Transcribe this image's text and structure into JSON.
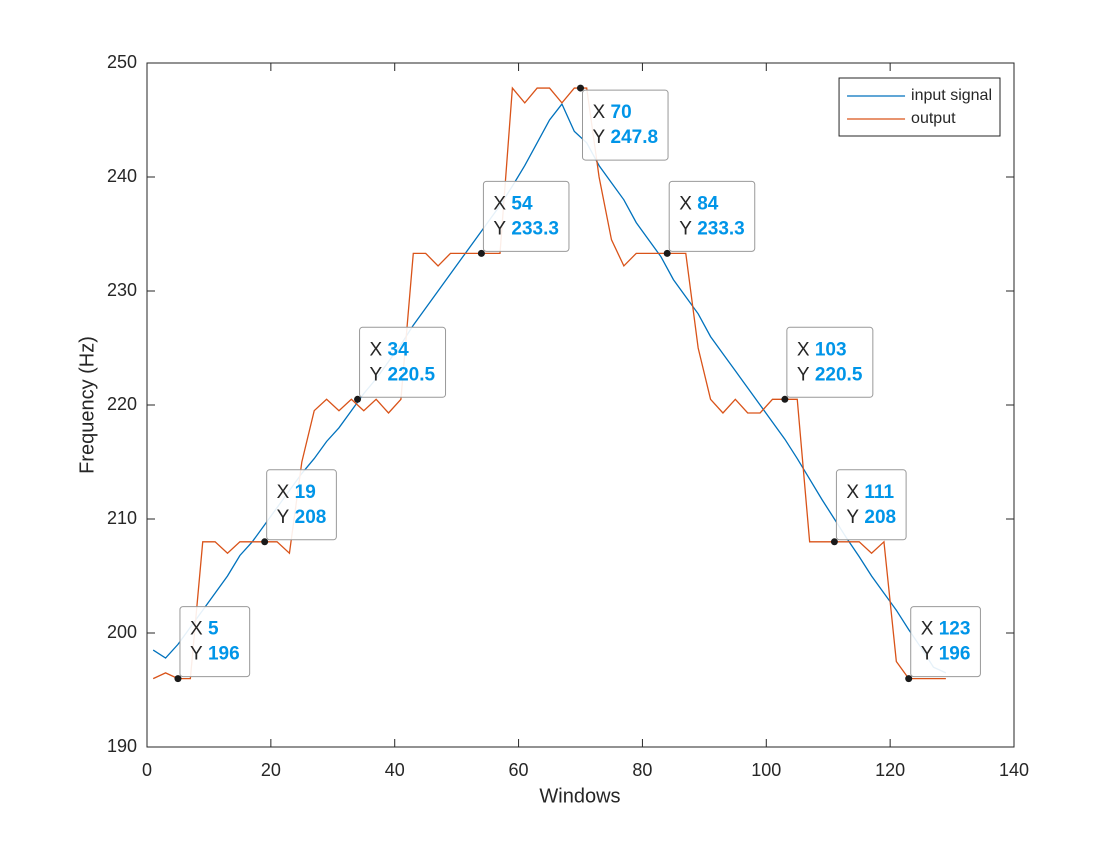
{
  "chart_data": {
    "type": "line",
    "xlabel": "Windows",
    "ylabel": "Frequency (Hz)",
    "x": [
      1,
      3,
      5,
      7,
      9,
      11,
      13,
      15,
      17,
      19,
      21,
      23,
      25,
      27,
      29,
      31,
      33,
      35,
      37,
      39,
      41,
      43,
      45,
      47,
      49,
      51,
      53,
      55,
      57,
      59,
      61,
      63,
      65,
      67,
      69,
      71,
      73,
      75,
      77,
      79,
      81,
      83,
      85,
      87,
      89,
      91,
      93,
      95,
      97,
      99,
      101,
      103,
      105,
      107,
      109,
      111,
      113,
      115,
      117,
      119,
      121,
      123,
      125,
      127,
      129
    ],
    "series": [
      {
        "name": "input signal",
        "color": "#0072BD",
        "values": [
          198.5,
          197.8,
          199,
          200.5,
          202,
          203.5,
          205,
          206.8,
          208,
          209.5,
          211,
          212.5,
          214,
          215.3,
          216.8,
          218,
          219.5,
          221,
          222.3,
          223.8,
          225.3,
          227,
          228.5,
          230,
          231.5,
          233,
          234.5,
          236,
          237.5,
          239.2,
          241,
          243,
          245,
          246.4,
          244,
          243,
          241,
          239.5,
          238,
          236,
          234.5,
          233,
          231,
          229.5,
          228,
          226,
          224.5,
          223,
          221.5,
          220,
          218.5,
          217,
          215.3,
          213.5,
          211.7,
          210,
          208.3,
          206.7,
          205,
          203.5,
          202,
          200.3,
          198.7,
          197,
          196.5
        ]
      },
      {
        "name": "output",
        "color": "#D95319",
        "values": [
          196,
          196.5,
          196,
          196,
          208,
          208,
          207,
          208,
          208,
          208,
          208,
          207,
          215,
          219.5,
          220.5,
          219.5,
          220.5,
          219.5,
          220.5,
          219.3,
          220.5,
          233.3,
          233.3,
          232.2,
          233.3,
          233.3,
          233.3,
          233.3,
          233.3,
          247.8,
          246.5,
          247.8,
          247.8,
          246.5,
          247.8,
          247.8,
          240,
          234.5,
          232.2,
          233.3,
          233.3,
          233.3,
          233.3,
          233.3,
          225,
          220.5,
          219.3,
          220.5,
          219.3,
          219.3,
          220.5,
          220.5,
          220.5,
          208,
          208,
          208,
          208,
          208,
          207,
          208,
          197.5,
          196,
          196,
          196,
          196
        ]
      }
    ],
    "datatip_x_label": "X",
    "datatip_y_label": "Y",
    "datatips": [
      {
        "x": 5,
        "y": 196
      },
      {
        "x": 19,
        "y": 208
      },
      {
        "x": 34,
        "y": 220.5
      },
      {
        "x": 54,
        "y": 233.3
      },
      {
        "x": 70,
        "y": 247.8
      },
      {
        "x": 84,
        "y": 233.3
      },
      {
        "x": 103,
        "y": 220.5
      },
      {
        "x": 111,
        "y": 208
      },
      {
        "x": 123,
        "y": 196
      }
    ],
    "xlim": [
      0,
      140
    ],
    "xticks": [
      0,
      20,
      40,
      60,
      80,
      100,
      120,
      140
    ],
    "ylim": [
      190,
      250
    ],
    "yticks": [
      190,
      200,
      210,
      220,
      230,
      240,
      250
    ],
    "grid": false,
    "legend": "northeast"
  }
}
